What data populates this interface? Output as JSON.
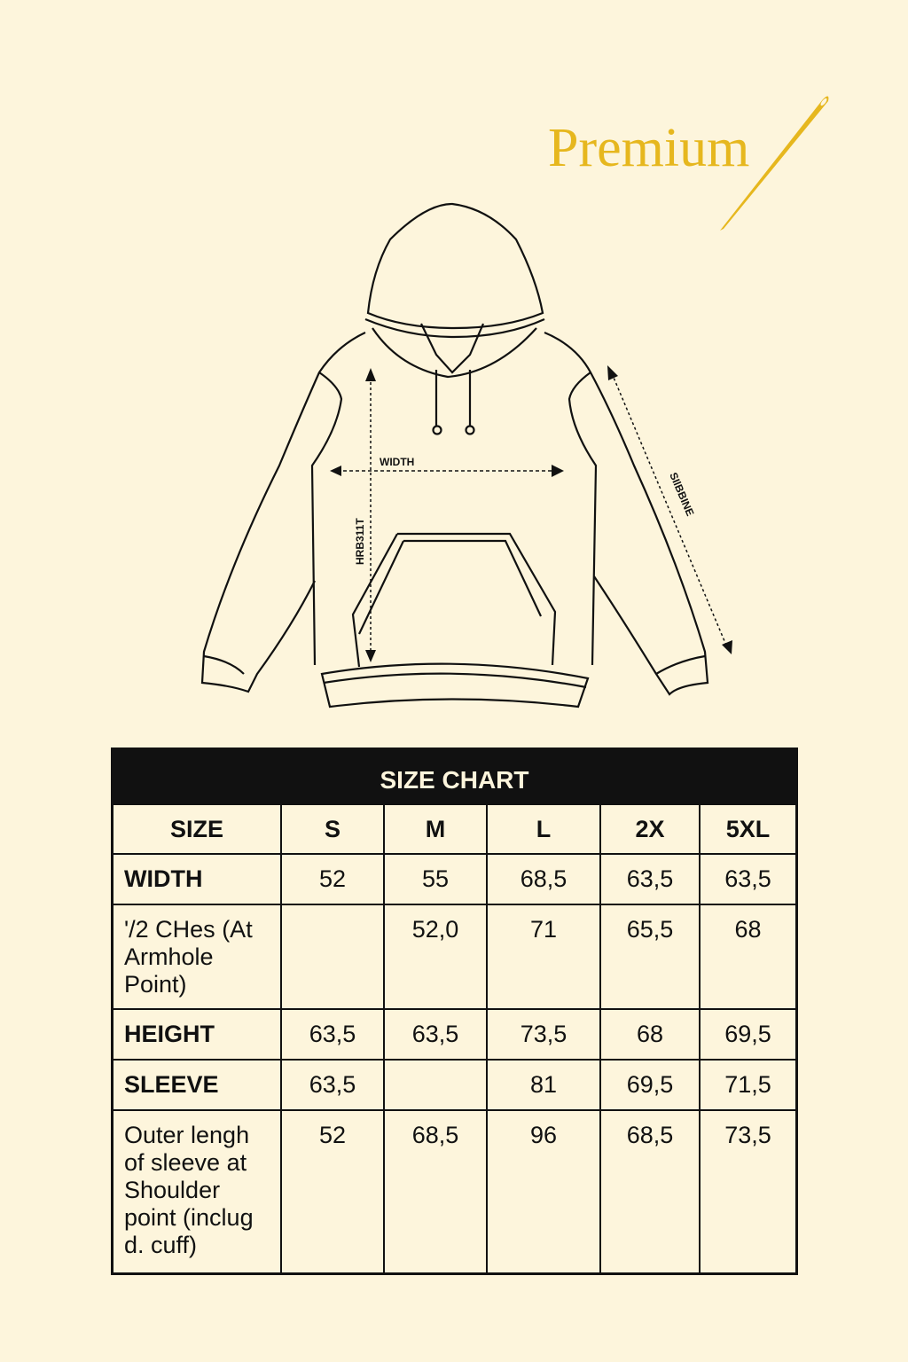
{
  "brand": {
    "name": "Premium",
    "color": "#e6b71e"
  },
  "diagram": {
    "width_label": "WIDTH",
    "height_label": "HRB311T",
    "sleeve_label": "SIlBBINE"
  },
  "size_chart": {
    "title": "SIZE CHART",
    "columns": [
      "SIZE",
      "S",
      "M",
      "L",
      "2X",
      "5XL"
    ],
    "rows": [
      {
        "label": "WIDTH",
        "bold": true,
        "values": [
          "52",
          "55",
          "68,5",
          "63,5",
          "63,5"
        ]
      },
      {
        "label": "'/2 CHes (At Armhole Point)",
        "bold": false,
        "values": [
          "",
          "52,0",
          "71",
          "65,5",
          "68"
        ]
      },
      {
        "label": "HEIGHT",
        "bold": true,
        "values": [
          "63,5",
          "63,5",
          "73,5",
          "68",
          "69,5"
        ]
      },
      {
        "label": "SLEEVE",
        "bold": true,
        "values": [
          "63,5",
          "",
          "81",
          "69,5",
          "71,5"
        ]
      },
      {
        "label": "Outer lengh of sleeve at Shoulder point (inclug d. cuff)",
        "bold": false,
        "values": [
          "52",
          "68,5",
          "96",
          "68,5",
          "73,5"
        ]
      }
    ]
  }
}
